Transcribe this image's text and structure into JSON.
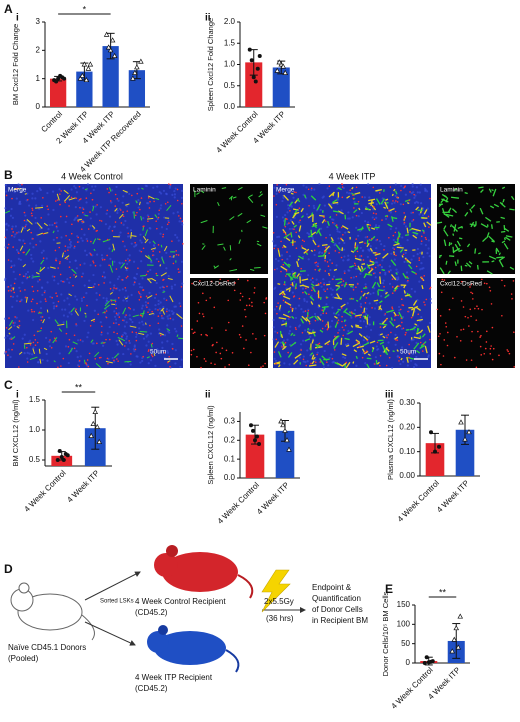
{
  "panel_labels": [
    "A",
    "i",
    "ii",
    "B",
    "C",
    "i",
    "ii",
    "iii",
    "D",
    "E"
  ],
  "chart_data": [
    {
      "type": "bar",
      "y_label": "BM Cxcl12 Fold Change",
      "categories": [
        "Control",
        "2 Week ITP",
        "4 Week ITP",
        "4 Week ITP Recovered"
      ],
      "values": [
        1.0,
        1.25,
        2.15,
        1.3
      ],
      "errors": [
        0.08,
        0.3,
        0.45,
        0.3
      ],
      "colors": [
        "#e3262d",
        "#1f4fc4",
        "#1f4fc4",
        "#1f4fc4"
      ],
      "markers": [
        "circle",
        "triangle",
        "triangle",
        "triangle"
      ],
      "points": [
        [
          0.95,
          1.0,
          1.05,
          0.9,
          1.1,
          1.0
        ],
        [
          1.0,
          1.5,
          1.35,
          1.1,
          0.95,
          1.5
        ],
        [
          2.55,
          2.0,
          1.8,
          2.1,
          2.35
        ],
        [
          1.0,
          1.4,
          1.6,
          1.2
        ]
      ],
      "ylim": [
        0,
        3
      ],
      "yticks": [
        0,
        1,
        2,
        3
      ],
      "significance": {
        "label": "*",
        "categories": [
          "Control",
          "4 Week ITP"
        ]
      }
    },
    {
      "type": "bar",
      "y_label": "Spleen Cxcl12 Fold Change",
      "categories": [
        "4 Week Control",
        "4 Week ITP"
      ],
      "values": [
        1.05,
        0.93
      ],
      "errors": [
        0.3,
        0.15
      ],
      "colors": [
        "#e3262d",
        "#1f4fc4"
      ],
      "markers": [
        "circle",
        "triangle"
      ],
      "points": [
        [
          1.35,
          0.7,
          0.9,
          1.1,
          0.6,
          1.2
        ],
        [
          0.85,
          1.0,
          0.8,
          1.05,
          0.95
        ]
      ],
      "ylim": [
        0,
        2
      ],
      "yticks": [
        {
          "value": 0,
          "label": "0.0"
        },
        0.5,
        {
          "value": 1,
          "label": "1.0"
        },
        1.5,
        {
          "value": 2,
          "label": "2.0"
        }
      ]
    },
    {
      "type": "bar",
      "y_label": "BM CXCL12 (ng/ml)",
      "categories": [
        "4 Week Control",
        "4 Week ITP"
      ],
      "values": [
        0.57,
        1.03
      ],
      "errors": [
        0.07,
        0.35
      ],
      "colors": [
        "#e3262d",
        "#1f4fc4"
      ],
      "markers": [
        "circle",
        "triangle"
      ],
      "points": [
        [
          0.5,
          0.55,
          0.6,
          0.65,
          0.5,
          0.58
        ],
        [
          0.9,
          1.3,
          0.8,
          1.1,
          1.05
        ]
      ],
      "ylim": [
        0.4,
        1.5
      ],
      "yticks": [
        0.5,
        {
          "value": 1,
          "label": "1.0"
        },
        1.5
      ],
      "significance": {
        "label": "**",
        "categories": [
          "4 Week Control",
          "4 Week ITP"
        ]
      }
    },
    {
      "type": "bar",
      "y_label": "Spleen CXCL12 (ng/ml)",
      "categories": [
        "4 Week Control",
        "4 Week ITP"
      ],
      "values": [
        0.23,
        0.25
      ],
      "errors": [
        0.05,
        0.055
      ],
      "colors": [
        "#e3262d",
        "#1f4fc4"
      ],
      "markers": [
        "circle",
        "triangle"
      ],
      "points": [
        [
          0.28,
          0.2,
          0.18,
          0.25,
          0.22
        ],
        [
          0.3,
          0.25,
          0.15,
          0.28,
          0.2
        ]
      ],
      "ylim": [
        0,
        0.35
      ],
      "yticks": [
        {
          "value": 0,
          "label": "0.0"
        },
        0.1,
        0.2,
        0.3
      ]
    },
    {
      "type": "bar",
      "y_label": "Plasma CXCL12 (ng/ml)",
      "categories": [
        "4 Week Control",
        "4 Week ITP"
      ],
      "values": [
        0.135,
        0.19
      ],
      "errors": [
        0.04,
        0.06
      ],
      "colors": [
        "#e3262d",
        "#1f4fc4"
      ],
      "markers": [
        "circle",
        "triangle"
      ],
      "points": [
        [
          0.18,
          0.1,
          0.12
        ],
        [
          0.22,
          0.15,
          0.18
        ]
      ],
      "ylim": [
        0,
        0.3
      ],
      "yticks": [
        {
          "value": 0,
          "label": "0.00"
        },
        {
          "value": 0.1,
          "label": "0.10"
        },
        {
          "value": 0.2,
          "label": "0.20"
        },
        {
          "value": 0.3,
          "label": "0.30"
        }
      ]
    },
    {
      "type": "bar",
      "y_label": "Donor Cells/10⁵ BM Cells",
      "categories": [
        "4 Week Control",
        "4 Week ITP"
      ],
      "values": [
        5,
        57
      ],
      "errors": [
        10,
        45
      ],
      "colors": [
        "#e3262d",
        "#1f4fc4"
      ],
      "markers": [
        "circle",
        "triangle"
      ],
      "points": [
        [
          0,
          2,
          5,
          15,
          3
        ],
        [
          30,
          90,
          120,
          60,
          40
        ]
      ],
      "ylim": [
        0,
        150
      ],
      "yticks": [
        0,
        50,
        100,
        150
      ],
      "significance": {
        "label": "**",
        "categories": [
          "4 Week Control",
          "4 Week ITP"
        ]
      }
    }
  ],
  "images": {
    "control_title": "4 Week Control",
    "itp_title": "4 Week ITP",
    "merge": "Merge",
    "laminin": "Laminin",
    "dsred": "Cxcl12-DsRed",
    "scale": "50um"
  },
  "diagram": {
    "donor": [
      "Naïve CD45.1 Donors",
      "(Pooled)"
    ],
    "sorted": "Sorted LSKs",
    "control_recipient": [
      "4 Week Control Recipient",
      "(CD45.2)"
    ],
    "itp_recipient": [
      "4 Week ITP Recipient",
      "(CD45.2)"
    ],
    "irradiation": [
      "2x5.5Gy",
      "(36 hrs)"
    ],
    "endpoint": [
      "Endpoint &",
      "Quantification",
      "of Donor Cells",
      "in Recipient BM"
    ]
  }
}
